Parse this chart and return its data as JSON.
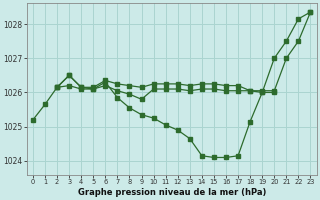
{
  "xlabel": "Graphe pression niveau de la mer (hPa)",
  "background_color": "#cceae8",
  "grid_color": "#aad4d0",
  "line_color": "#2d6b2d",
  "ylim": [
    1023.6,
    1028.6
  ],
  "yticks": [
    1024,
    1025,
    1026,
    1027,
    1028
  ],
  "xticks": [
    0,
    1,
    2,
    3,
    4,
    5,
    6,
    7,
    8,
    9,
    10,
    11,
    12,
    13,
    14,
    15,
    16,
    17,
    18,
    19,
    20,
    21,
    22,
    23
  ],
  "series_main_x": [
    0,
    1,
    2,
    3,
    4,
    5,
    6,
    7,
    8,
    9,
    10,
    11,
    12,
    13,
    14,
    15,
    16,
    17,
    18,
    19,
    20,
    21,
    22,
    23
  ],
  "series_main_y": [
    1025.2,
    1025.65,
    1026.15,
    1026.5,
    1026.15,
    1026.1,
    1026.3,
    1025.85,
    1025.55,
    1025.35,
    1025.25,
    1025.05,
    1024.9,
    1024.65,
    1024.15,
    1024.1,
    1024.1,
    1024.15,
    1025.15,
    1026.0,
    1027.0,
    1027.5,
    1028.15,
    1028.35
  ],
  "series_top_x": [
    2,
    3,
    4,
    5,
    6,
    7,
    8,
    9,
    10,
    11,
    12,
    13,
    14,
    15,
    16,
    17,
    18,
    19,
    20,
    21,
    22,
    23
  ],
  "series_top_y": [
    1026.15,
    1026.5,
    1026.15,
    1026.15,
    1026.35,
    1026.25,
    1026.2,
    1026.15,
    1026.25,
    1026.25,
    1026.25,
    1026.2,
    1026.25,
    1026.25,
    1026.2,
    1026.2,
    1026.05,
    1026.05,
    1026.05,
    1027.0,
    1027.5,
    1028.35
  ],
  "series_mid_x": [
    2,
    3,
    4,
    5,
    6,
    7,
    8,
    9,
    10,
    11,
    12,
    13,
    14,
    15,
    16,
    17,
    18,
    19,
    20
  ],
  "series_mid_y": [
    1026.15,
    1026.2,
    1026.1,
    1026.1,
    1026.2,
    1026.05,
    1025.95,
    1025.8,
    1026.1,
    1026.1,
    1026.1,
    1026.05,
    1026.1,
    1026.1,
    1026.05,
    1026.05,
    1026.05,
    1026.0,
    1026.0
  ]
}
